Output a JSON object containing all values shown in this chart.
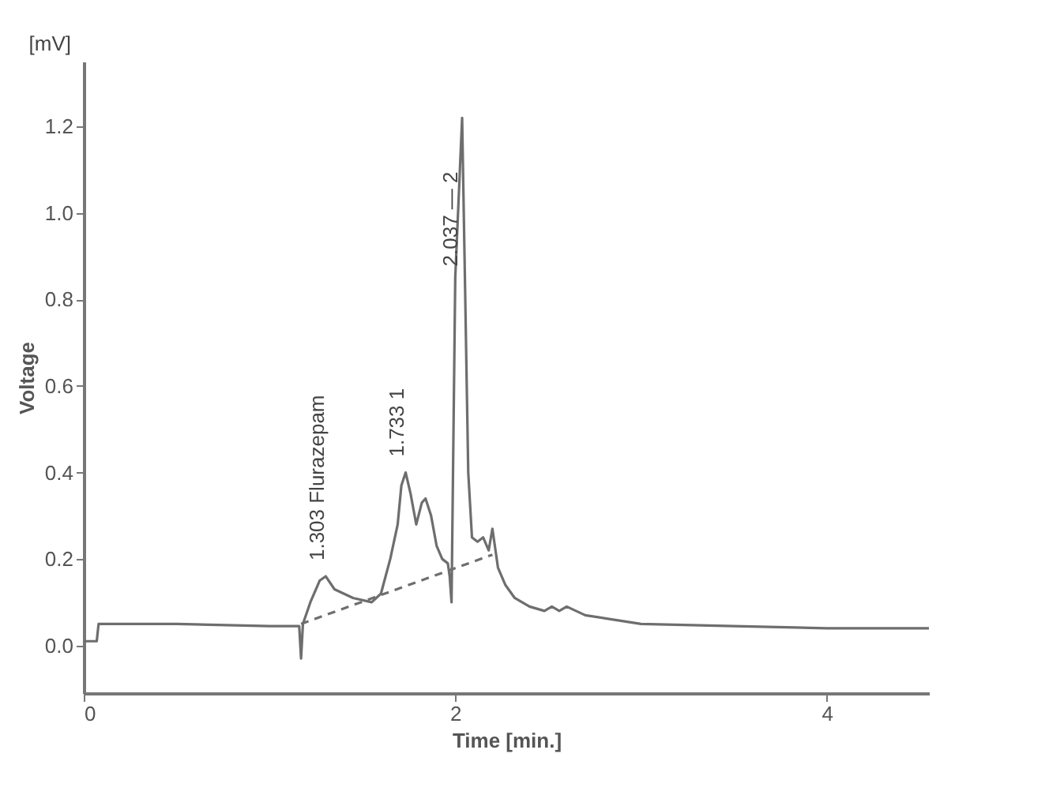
{
  "chart_data": {
    "type": "line",
    "xlabel": "Time [min.]",
    "ylabel": "Voltage",
    "xlim": [
      0,
      4.55
    ],
    "ylim": [
      -0.11,
      1.35
    ],
    "xticks": [
      {
        "value": 0,
        "label": "0"
      },
      {
        "value": 2,
        "label": "2"
      },
      {
        "value": 4,
        "label": "4"
      }
    ],
    "yticks": [
      {
        "value": 0,
        "label": "0.0"
      },
      {
        "value": 0.2,
        "label": "0.2"
      },
      {
        "value": 0.4,
        "label": "0.4"
      },
      {
        "value": 0.6,
        "label": "0.6"
      },
      {
        "value": 0.8,
        "label": "0.8"
      },
      {
        "value": 1.0,
        "label": "1.0"
      },
      {
        "value": 1.2,
        "label": "1.2"
      }
    ],
    "grid": false,
    "series": [
      {
        "color": "#6e6e6e",
        "line_style": "solid",
        "x": [
          0,
          0.07,
          0.08,
          0.5,
          1.0,
          1.16,
          1.17,
          1.18,
          1.22,
          1.27,
          1.303,
          1.35,
          1.45,
          1.55,
          1.6,
          1.65,
          1.69,
          1.71,
          1.733,
          1.76,
          1.79,
          1.82,
          1.84,
          1.87,
          1.9,
          1.93,
          1.96,
          1.97,
          1.98,
          2.0,
          2.02,
          2.037,
          2.05,
          2.07,
          2.09,
          2.12,
          2.15,
          2.18,
          2.2,
          2.23,
          2.27,
          2.32,
          2.4,
          2.48,
          2.52,
          2.56,
          2.6,
          2.7,
          2.85,
          3.0,
          3.5,
          4.0,
          4.55
        ],
        "values": [
          0.01,
          0.01,
          0.05,
          0.05,
          0.045,
          0.045,
          -0.03,
          0.05,
          0.1,
          0.15,
          0.16,
          0.13,
          0.11,
          0.1,
          0.12,
          0.2,
          0.28,
          0.37,
          0.4,
          0.35,
          0.28,
          0.33,
          0.34,
          0.3,
          0.23,
          0.2,
          0.19,
          0.16,
          0.1,
          0.85,
          1.05,
          1.22,
          0.9,
          0.4,
          0.25,
          0.24,
          0.25,
          0.22,
          0.27,
          0.18,
          0.14,
          0.11,
          0.09,
          0.08,
          0.09,
          0.08,
          0.09,
          0.07,
          0.06,
          0.05,
          0.045,
          0.04,
          0.04
        ]
      },
      {
        "color": "#6e6e6e",
        "line_style": "dashed",
        "x": [
          1.17,
          2.2
        ],
        "values": [
          0.05,
          0.21
        ]
      }
    ],
    "annotations": [
      "[mV]",
      {
        "text": "1.303  Flurazepam",
        "x": 1.303,
        "y": 0.16
      },
      {
        "text": "1.733  1",
        "x": 1.73,
        "y": 0.4
      },
      {
        "text": "2.037 — 2",
        "x": 2.02,
        "y": 0.84
      }
    ]
  }
}
